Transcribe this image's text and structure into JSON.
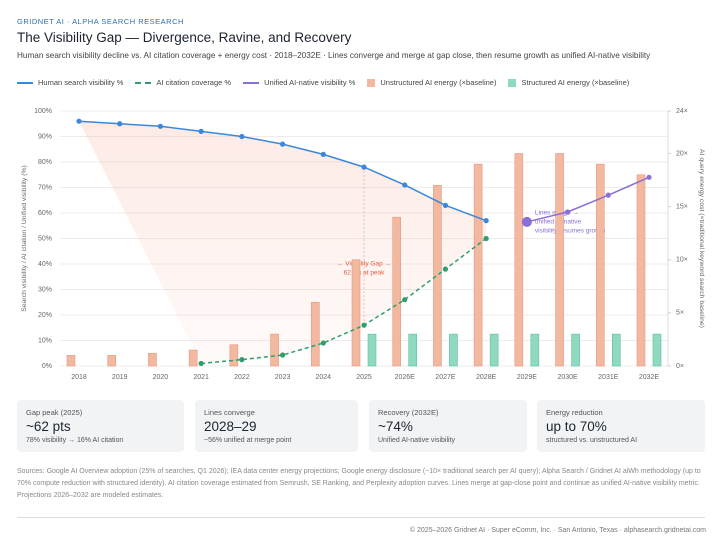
{
  "header": {
    "kicker": "GRIDNET AI · ALPHA SEARCH RESEARCH",
    "title": "The Visibility Gap — Divergence, Ravine, and Recovery",
    "subtitle": "Human search visibility decline vs. AI citation coverage + energy cost · 2018–2032E · Lines converge and merge at gap close, then resume growth as unified AI-native visibility"
  },
  "chart_data": {
    "type": "combo",
    "categories": [
      "2018",
      "2019",
      "2020",
      "2021",
      "2022",
      "2023",
      "2024",
      "2025",
      "2026E",
      "2027E",
      "2028E",
      "2029E",
      "2030E",
      "2031E",
      "2032E"
    ],
    "y_label": "Search visibility / AI citation / Unified visibility (%)",
    "y2_label": "AI query energy cost (×traditional keyword search baseline)",
    "ylim": [
      0,
      100
    ],
    "yticks": [
      {
        "value": 0,
        "label": "0%"
      },
      {
        "value": 10,
        "label": "10%"
      },
      {
        "value": 20,
        "label": "20%"
      },
      {
        "value": 30,
        "label": "30%"
      },
      {
        "value": 40,
        "label": "40%"
      },
      {
        "value": 50,
        "label": "50%"
      },
      {
        "value": 60,
        "label": "60%"
      },
      {
        "value": 70,
        "label": "70%"
      },
      {
        "value": 80,
        "label": "80%"
      },
      {
        "value": 90,
        "label": "90%"
      },
      {
        "value": 100,
        "label": "100%"
      }
    ],
    "y2lim": [
      0,
      24
    ],
    "y2ticks": [
      {
        "value": 0,
        "label": "0×"
      },
      {
        "value": 5,
        "label": "5×"
      },
      {
        "value": 10,
        "label": "10×"
      },
      {
        "value": 15,
        "label": "15×"
      },
      {
        "value": 20,
        "label": "20×"
      },
      {
        "value": 24,
        "label": "24×"
      }
    ],
    "grid": true,
    "series": [
      {
        "name": "Human search visibility %",
        "type": "line",
        "color": "#3b87d9",
        "dashed": false,
        "values": [
          96,
          95,
          94,
          92,
          90,
          87,
          83,
          78,
          71,
          63,
          57,
          null,
          null,
          null,
          null
        ]
      },
      {
        "name": "AI citation coverage %",
        "type": "line",
        "color": "#2e9e6a",
        "dashed": true,
        "values": [
          null,
          null,
          null,
          1,
          2.5,
          4.3,
          9,
          16,
          26,
          38,
          50,
          null,
          null,
          null,
          null
        ]
      },
      {
        "name": "Unified AI-native visibility %",
        "type": "line",
        "color": "#8a6fd6",
        "dashed": false,
        "values": [
          null,
          null,
          null,
          null,
          null,
          null,
          null,
          null,
          null,
          null,
          null,
          56.5,
          60.4,
          67,
          74
        ]
      },
      {
        "name": "Unstructured AI energy (×baseline)",
        "type": "bar",
        "axis": "y2",
        "color": "#f2b8a0",
        "values": [
          1,
          1,
          1.2,
          1.5,
          2,
          3,
          6,
          10,
          14,
          17,
          19,
          20,
          20,
          19,
          18
        ]
      },
      {
        "name": "Structured AI energy (×baseline)",
        "type": "bar",
        "axis": "y2",
        "color": "#8fd9bf",
        "values": [
          null,
          null,
          null,
          null,
          null,
          null,
          null,
          3,
          3,
          3,
          3,
          3,
          3,
          3,
          3
        ]
      }
    ],
    "annotations": [
      {
        "lines": [
          "← Visibility Gap →",
          "62 pts at peak"
        ],
        "color": "#e0603a",
        "category": 7,
        "y": 40
      },
      {
        "lines": [
          "Lines merge →",
          "unified AI-native",
          "visibility resumes growth"
        ],
        "color": "#8a6fd6",
        "category": 11,
        "y": 60
      }
    ]
  },
  "cards": [
    {
      "label": "Gap peak (2025)",
      "value": "~62 pts",
      "note": "78% visibility → 16% AI citation"
    },
    {
      "label": "Lines converge",
      "value": "2028–29",
      "note": "~56% unified at merge point"
    },
    {
      "label": "Recovery (2032E)",
      "value": "~74%",
      "note": "Unified AI-native visibility"
    },
    {
      "label": "Energy reduction",
      "value": "up to 70%",
      "note": "structured vs. unstructured AI"
    }
  ],
  "sources": "Sources: Google AI Overview adoption (25% of searches, Q1 2026); IEA data center energy projections; Google energy disclosure (~10× traditional search per AI query); Alpha Search / Gridnet AI aiWh methodology (up to 70% compute reduction with structured identity). AI citation coverage estimated from Semrush, SE Ranking, and Perplexity adoption curves. Lines merge at gap-close point and continue as unified AI-native visibility metric. Projections 2026–2032 are modeled estimates.",
  "footer": "© 2025–2026 Gridnet AI · Super eComm, Inc. · San Antonio, Texas · alphasearch.gridnetai.com"
}
